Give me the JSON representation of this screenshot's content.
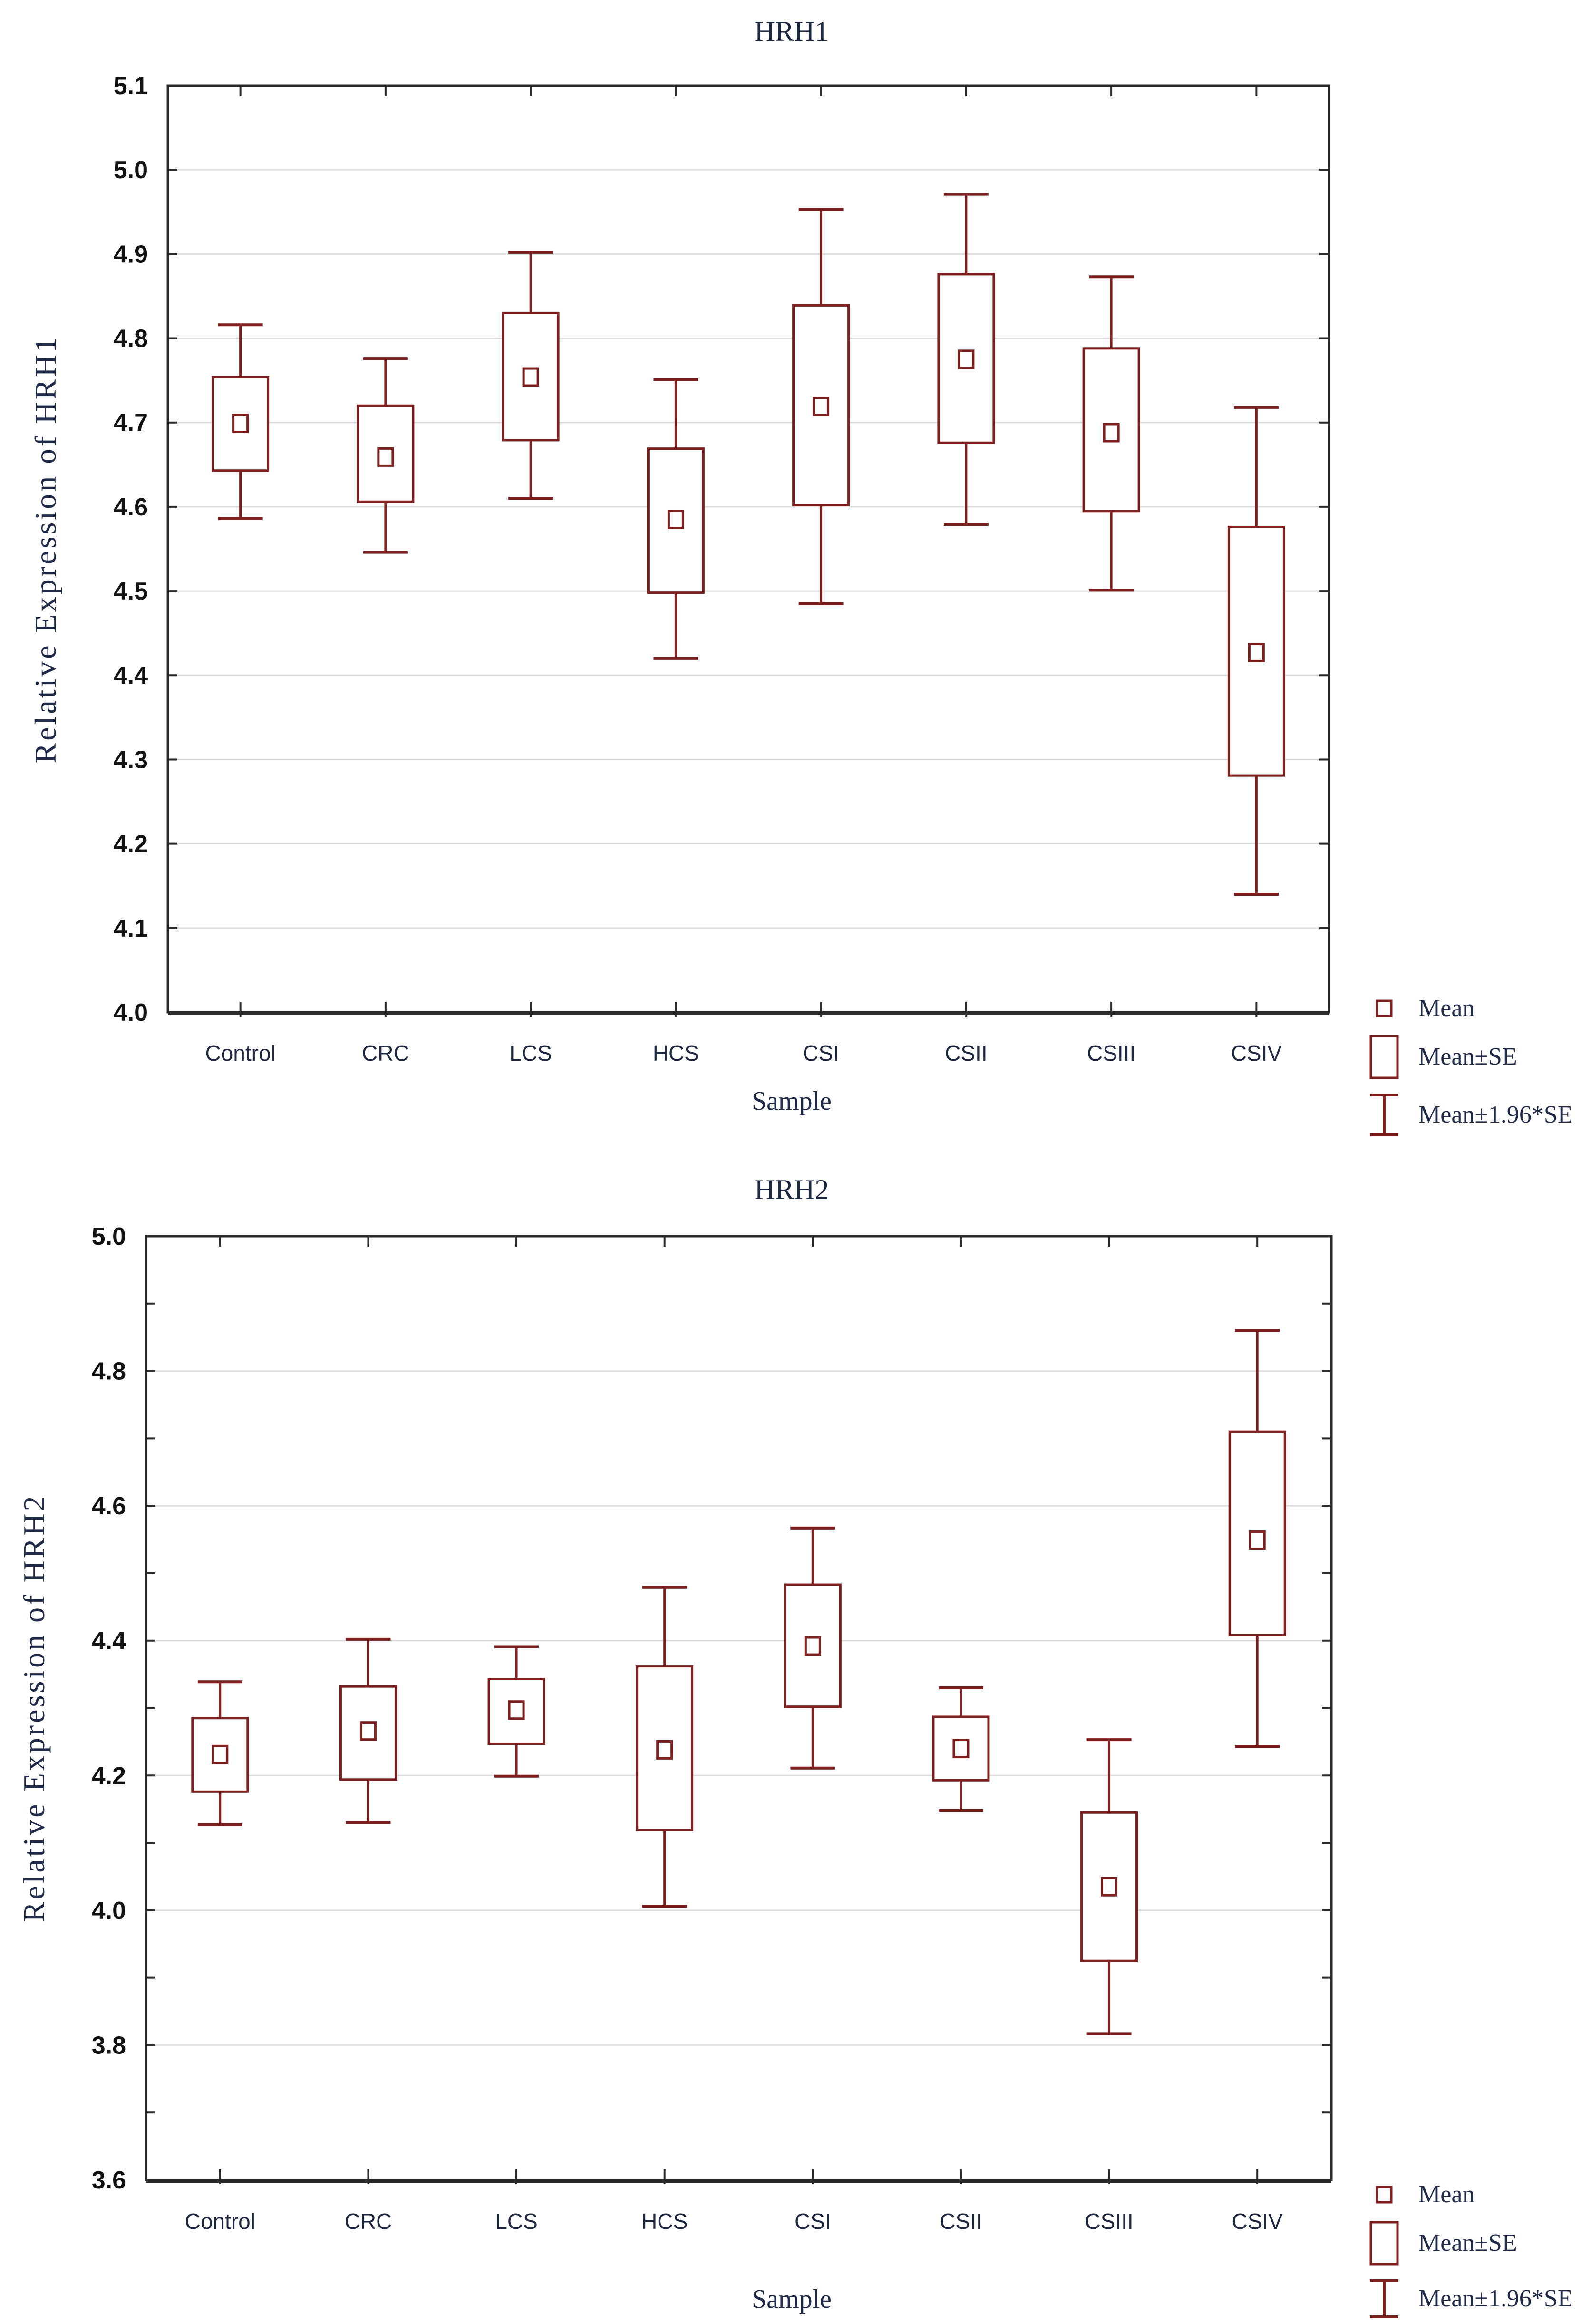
{
  "colors": {
    "mark": "#7b1f1f",
    "frame": "#2a2a2a",
    "grid": "#dcdcdc",
    "tick_text": "#121212",
    "category_text": "#1d2840",
    "serif_text": "#1e2a47",
    "background": "#ffffff"
  },
  "chart_data": {
    "type": "boxplot",
    "description": "Mean / Mean±SE / Mean±1.96*SE box-whisker plots",
    "legend": {
      "position": "bottom-right",
      "items": [
        {
          "label": "Mean",
          "marker": "mean-square"
        },
        {
          "label": "Mean±SE",
          "marker": "se-box"
        },
        {
          "label": "Mean±1.96*SE",
          "marker": "ci-whisker"
        }
      ]
    },
    "charts": [
      {
        "title": "HRH1",
        "ylabel": "Relative Expression of HRH1",
        "xlabel": "Sample",
        "ylim": [
          4.0,
          5.1
        ],
        "ytick_labels": [
          "5.1",
          "5.0",
          "4.9",
          "4.8",
          "4.7",
          "4.6",
          "4.5",
          "4.4",
          "4.3",
          "4.2",
          "4.1",
          "4.0"
        ],
        "grid": true,
        "categories": [
          "Control",
          "CRC",
          "LCS",
          "HCS",
          "CSI",
          "CSII",
          "CSIII",
          "CSIV"
        ],
        "series": [
          {
            "name": "Control",
            "mean": 4.699,
            "se_low": 4.643,
            "se_high": 4.754,
            "ci_low": 4.586,
            "ci_high": 4.816
          },
          {
            "name": "CRC",
            "mean": 4.659,
            "se_low": 4.606,
            "se_high": 4.72,
            "ci_low": 4.546,
            "ci_high": 4.776
          },
          {
            "name": "LCS",
            "mean": 4.754,
            "se_low": 4.679,
            "se_high": 4.83,
            "ci_low": 4.61,
            "ci_high": 4.902
          },
          {
            "name": "HCS",
            "mean": 4.585,
            "se_low": 4.498,
            "se_high": 4.669,
            "ci_low": 4.42,
            "ci_high": 4.751
          },
          {
            "name": "CSI",
            "mean": 4.719,
            "se_low": 4.602,
            "se_high": 4.839,
            "ci_low": 4.485,
            "ci_high": 4.953
          },
          {
            "name": "CSII",
            "mean": 4.775,
            "se_low": 4.676,
            "se_high": 4.876,
            "ci_low": 4.579,
            "ci_high": 4.971
          },
          {
            "name": "CSIII",
            "mean": 4.688,
            "se_low": 4.595,
            "se_high": 4.788,
            "ci_low": 4.501,
            "ci_high": 4.873
          },
          {
            "name": "CSIV",
            "mean": 4.427,
            "se_low": 4.281,
            "se_high": 4.576,
            "ci_low": 4.14,
            "ci_high": 4.718
          }
        ]
      },
      {
        "title": "HRH2",
        "ylabel": "Relative Expression of HRH2",
        "xlabel": "Sample",
        "ylim": [
          3.6,
          5.0
        ],
        "ytick_labels": [
          "5.0",
          "4.8",
          "4.6",
          "4.4",
          "4.2",
          "4.0",
          "3.8",
          "3.6"
        ],
        "grid": true,
        "categories": [
          "Control",
          "CRC",
          "LCS",
          "HCS",
          "CSI",
          "CSII",
          "CSIII",
          "CSIV"
        ],
        "series": [
          {
            "name": "Control",
            "mean": 4.231,
            "se_low": 4.176,
            "se_high": 4.285,
            "ci_low": 4.127,
            "ci_high": 4.339
          },
          {
            "name": "CRC",
            "mean": 4.266,
            "se_low": 4.194,
            "se_high": 4.332,
            "ci_low": 4.13,
            "ci_high": 4.402
          },
          {
            "name": "LCS",
            "mean": 4.297,
            "se_low": 4.247,
            "se_high": 4.343,
            "ci_low": 4.199,
            "ci_high": 4.391
          },
          {
            "name": "HCS",
            "mean": 4.238,
            "se_low": 4.119,
            "se_high": 4.362,
            "ci_low": 4.006,
            "ci_high": 4.479
          },
          {
            "name": "CSI",
            "mean": 4.392,
            "se_low": 4.302,
            "se_high": 4.483,
            "ci_low": 4.211,
            "ci_high": 4.567
          },
          {
            "name": "CSII",
            "mean": 4.24,
            "se_low": 4.193,
            "se_high": 4.287,
            "ci_low": 4.148,
            "ci_high": 4.33
          },
          {
            "name": "CSIII",
            "mean": 4.035,
            "se_low": 3.925,
            "se_high": 4.145,
            "ci_low": 3.817,
            "ci_high": 4.253
          },
          {
            "name": "CSIV",
            "mean": 4.549,
            "se_low": 4.408,
            "se_high": 4.71,
            "ci_low": 4.243,
            "ci_high": 4.86
          }
        ]
      }
    ]
  }
}
